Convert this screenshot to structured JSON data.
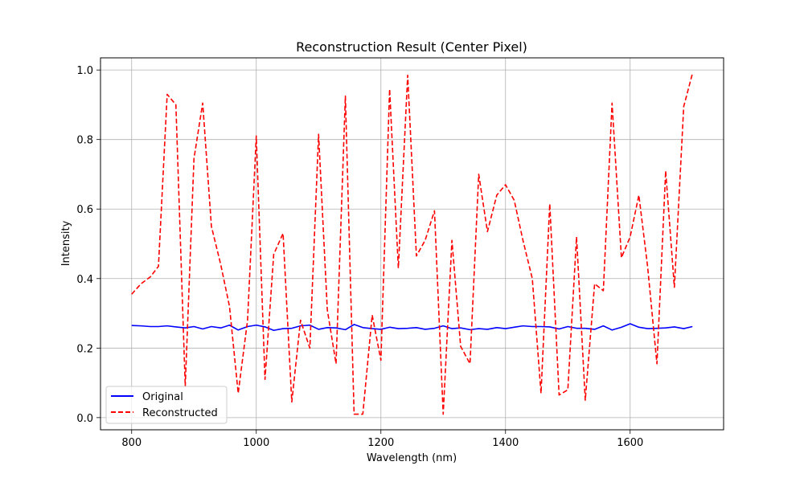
{
  "chart_data": {
    "type": "line",
    "title": "Reconstruction Result (Center Pixel)",
    "xlabel": "Wavelength (nm)",
    "ylabel": "Intensity",
    "xlim": [
      750,
      1750
    ],
    "ylim": [
      -0.035,
      1.035
    ],
    "xticks": [
      800,
      1000,
      1200,
      1400,
      1600
    ],
    "xtick_labels": [
      "800",
      "1000",
      "1200",
      "1400",
      "1600"
    ],
    "yticks": [
      0.0,
      0.2,
      0.4,
      0.6,
      0.8,
      1.0
    ],
    "ytick_labels": [
      "0.0",
      "0.2",
      "0.4",
      "0.6",
      "0.8",
      "1.0"
    ],
    "grid": true,
    "legend_position": "lower-left",
    "series": [
      {
        "name": "Original",
        "color": "#0000ff",
        "style": "solid",
        "x": [
          800,
          815,
          830,
          843,
          857,
          871,
          886,
          900,
          914,
          928,
          943,
          957,
          971,
          986,
          1000,
          1014,
          1028,
          1043,
          1057,
          1071,
          1086,
          1100,
          1114,
          1128,
          1143,
          1157,
          1171,
          1186,
          1200,
          1214,
          1228,
          1243,
          1257,
          1271,
          1286,
          1300,
          1314,
          1328,
          1343,
          1357,
          1371,
          1386,
          1400,
          1414,
          1428,
          1443,
          1457,
          1471,
          1486,
          1500,
          1514,
          1528,
          1543,
          1557,
          1571,
          1586,
          1600,
          1614,
          1628,
          1643,
          1657,
          1671,
          1686,
          1700
        ],
        "y": [
          0.265,
          0.264,
          0.262,
          0.262,
          0.264,
          0.261,
          0.258,
          0.262,
          0.255,
          0.262,
          0.258,
          0.266,
          0.252,
          0.262,
          0.266,
          0.261,
          0.251,
          0.256,
          0.257,
          0.264,
          0.266,
          0.254,
          0.259,
          0.258,
          0.253,
          0.268,
          0.259,
          0.256,
          0.254,
          0.26,
          0.256,
          0.257,
          0.259,
          0.254,
          0.257,
          0.264,
          0.256,
          0.258,
          0.253,
          0.256,
          0.254,
          0.259,
          0.256,
          0.26,
          0.264,
          0.262,
          0.262,
          0.261,
          0.255,
          0.262,
          0.257,
          0.257,
          0.254,
          0.264,
          0.252,
          0.26,
          0.27,
          0.26,
          0.256,
          0.257,
          0.258,
          0.261,
          0.256,
          0.262
        ]
      },
      {
        "name": "Reconstructed",
        "color": "#ff0000",
        "style": "dashed",
        "x": [
          800,
          815,
          830,
          843,
          857,
          871,
          886,
          900,
          914,
          928,
          943,
          957,
          971,
          986,
          1000,
          1014,
          1028,
          1043,
          1057,
          1071,
          1086,
          1100,
          1114,
          1128,
          1143,
          1157,
          1171,
          1186,
          1200,
          1214,
          1228,
          1243,
          1257,
          1271,
          1286,
          1300,
          1314,
          1328,
          1343,
          1357,
          1371,
          1386,
          1400,
          1414,
          1428,
          1443,
          1457,
          1471,
          1486,
          1500,
          1514,
          1528,
          1543,
          1557,
          1571,
          1586,
          1600,
          1614,
          1628,
          1643,
          1657,
          1671,
          1686,
          1700
        ],
        "y": [
          0.355,
          0.385,
          0.405,
          0.435,
          0.93,
          0.9,
          0.09,
          0.745,
          0.905,
          0.55,
          0.44,
          0.32,
          0.07,
          0.28,
          0.81,
          0.11,
          0.47,
          0.53,
          0.045,
          0.28,
          0.2,
          0.815,
          0.31,
          0.155,
          0.925,
          0.01,
          0.01,
          0.295,
          0.165,
          0.945,
          0.43,
          0.985,
          0.465,
          0.51,
          0.595,
          0.01,
          0.51,
          0.205,
          0.155,
          0.7,
          0.535,
          0.64,
          0.67,
          0.625,
          0.51,
          0.4,
          0.07,
          0.615,
          0.065,
          0.08,
          0.52,
          0.05,
          0.385,
          0.365,
          0.905,
          0.46,
          0.52,
          0.64,
          0.435,
          0.155,
          0.71,
          0.375,
          0.895,
          0.99
        ]
      }
    ]
  }
}
